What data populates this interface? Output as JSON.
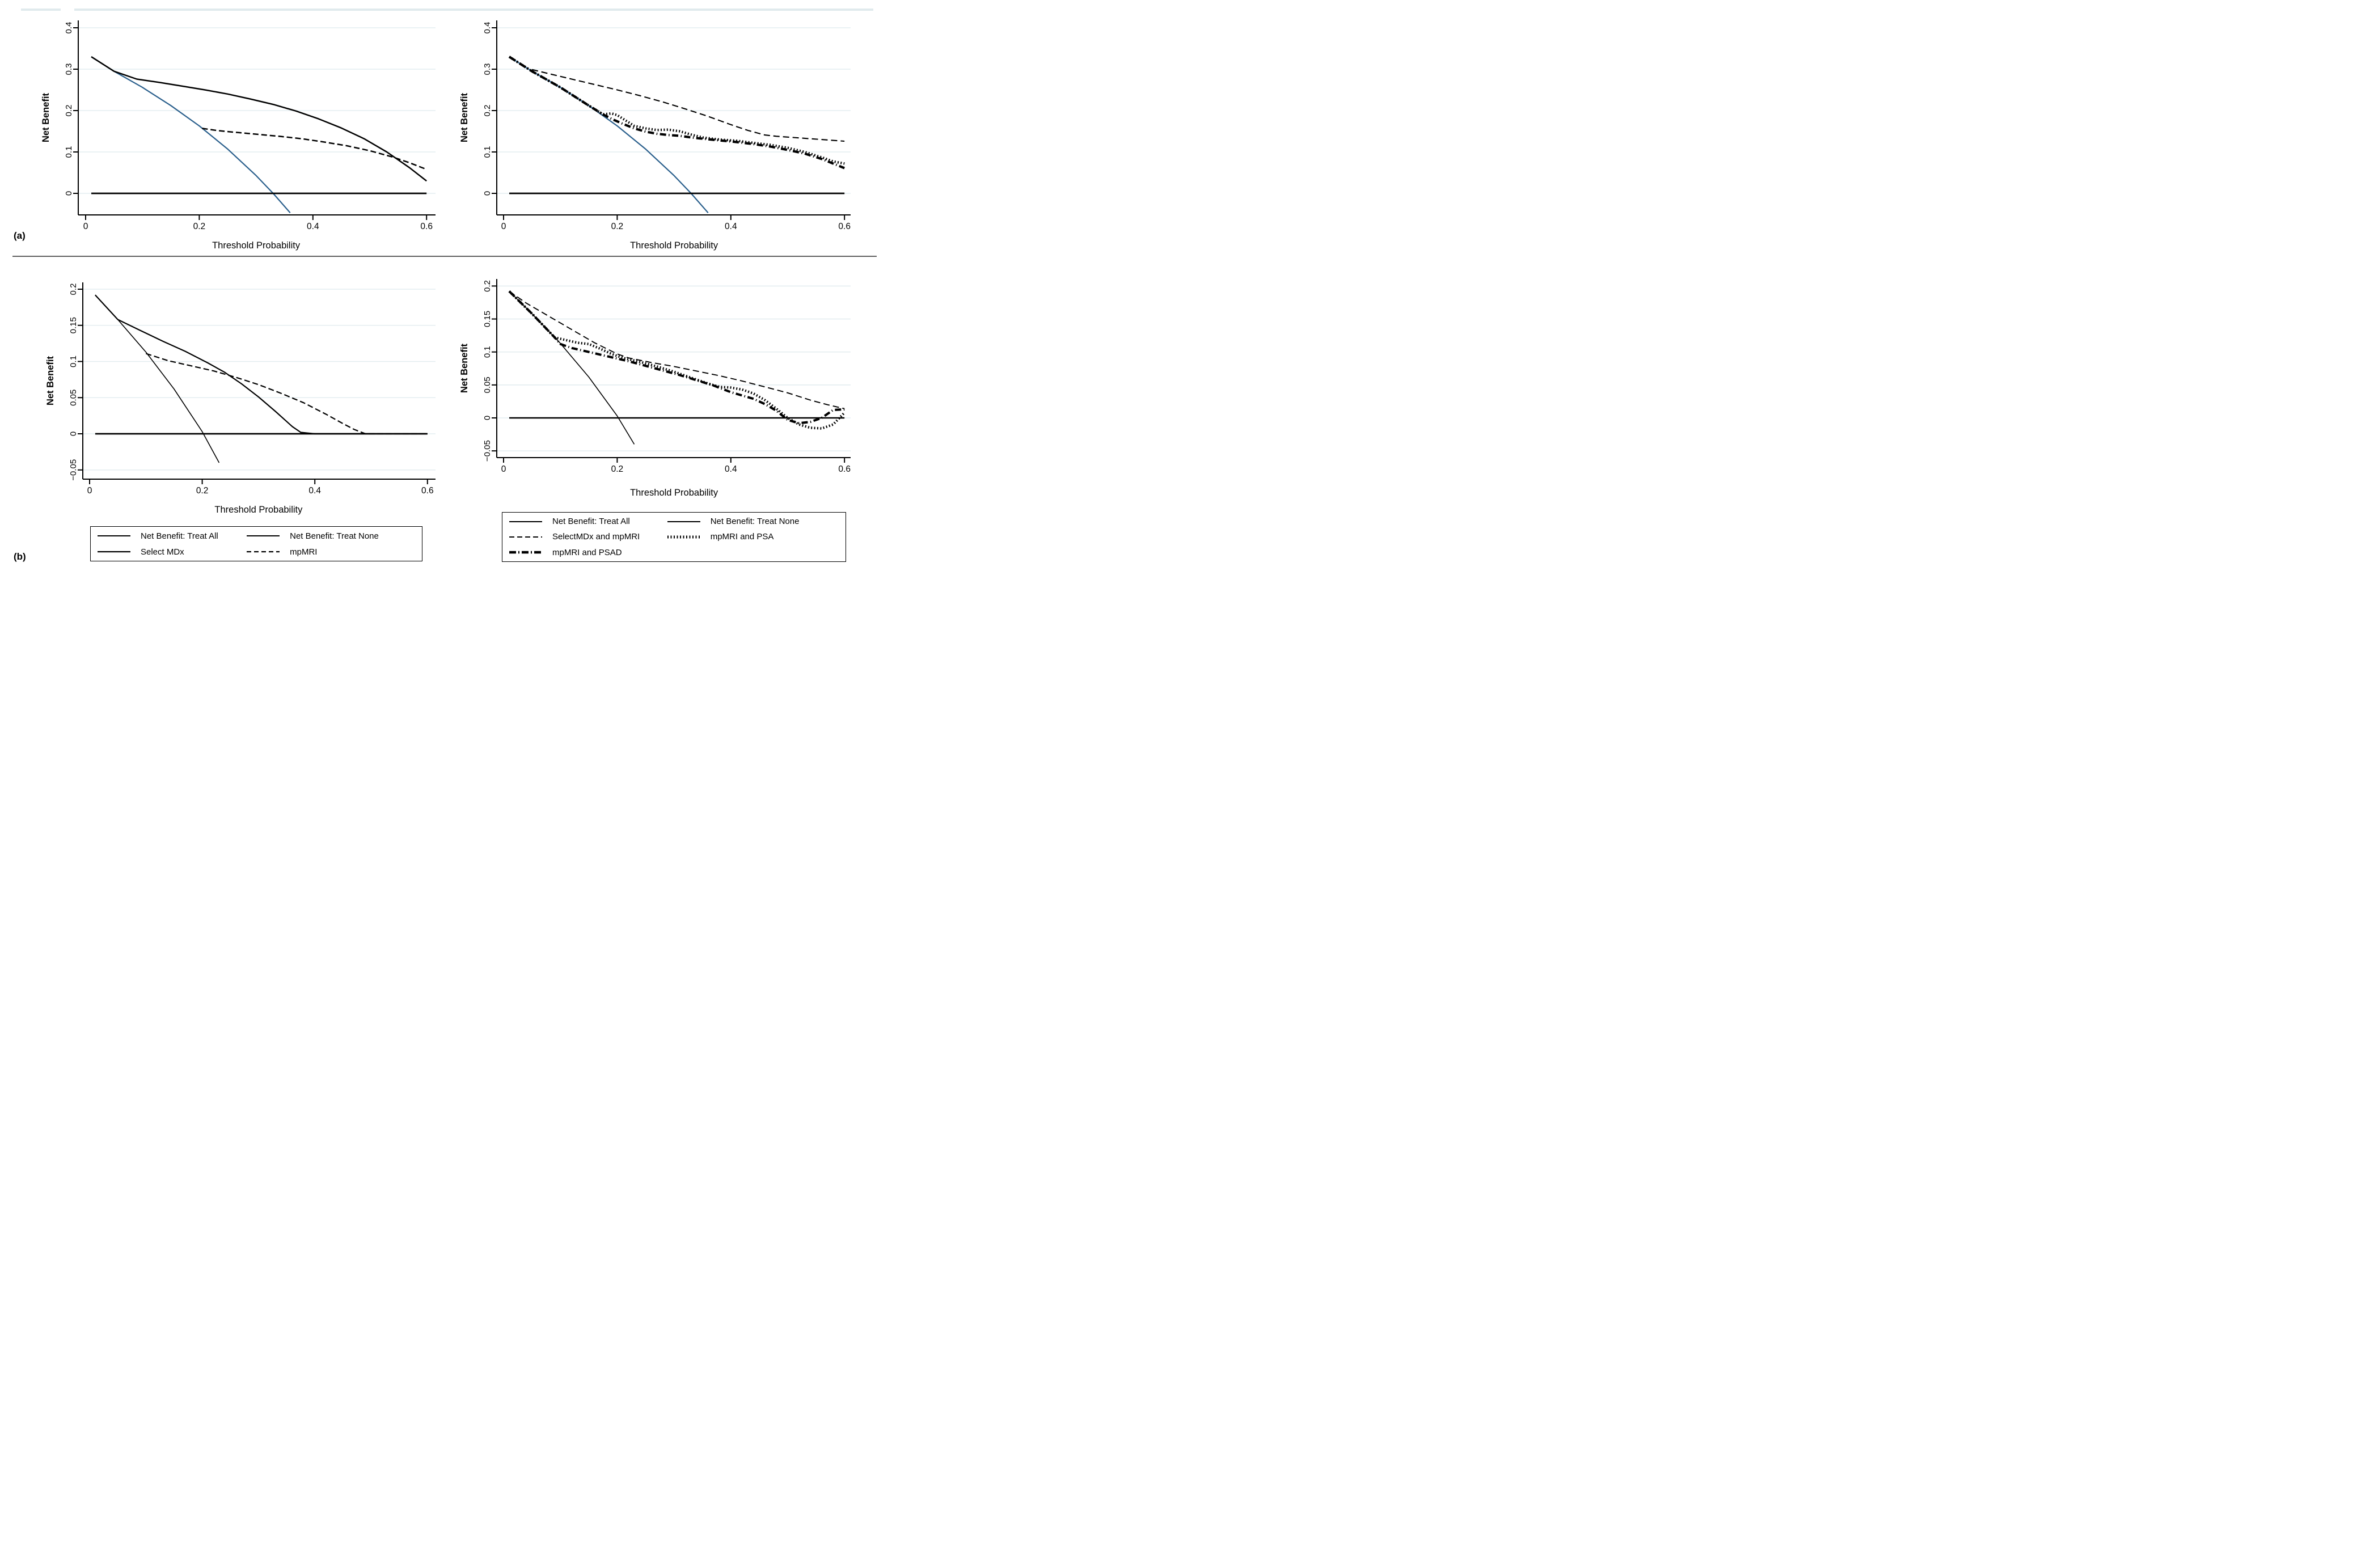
{
  "figure": {
    "panel_a_label": "(a)",
    "panel_b_label": "(b)"
  },
  "colors": {
    "treat_all_blue": "#2a5f8c",
    "line_black": "#000000",
    "grid": "#e4edf0",
    "divider": "#4a4a4a",
    "top_rule": "#e0eaed"
  },
  "chart_data": [
    {
      "id": "a-left",
      "type": "line",
      "panel": "a",
      "xlabel": "Threshold Probability",
      "ylabel": "Net Benefit",
      "xlim": [
        0,
        0.62
      ],
      "ylim": [
        -0.052,
        0.418
      ],
      "grid": true,
      "legend_position": "none",
      "x_tick_values": [
        0,
        0.2,
        0.4,
        0.6
      ],
      "x_ticks": [
        "0",
        "0.2",
        "0.4",
        "0.6"
      ],
      "y_tick_values": [
        0,
        0.1,
        0.2,
        0.3,
        0.4
      ],
      "y_ticks": [
        "0",
        "0.1",
        "0.2",
        "0.3",
        "0.4"
      ],
      "series": [
        {
          "name": "Net Benefit: Treat All",
          "key": "treat-all",
          "color": "#2a5f8c",
          "width": 2.2,
          "dash": "",
          "x": [
            0.01,
            0.05,
            0.1,
            0.15,
            0.2,
            0.25,
            0.3,
            0.33,
            0.36
          ],
          "y": [
            0.33,
            0.295,
            0.256,
            0.212,
            0.163,
            0.107,
            0.043,
            0.0,
            -0.047
          ]
        },
        {
          "name": "Net Benefit: Treat None",
          "key": "treat-none",
          "color": "#000000",
          "width": 2.8,
          "dash": "",
          "x": [
            0.01,
            0.6
          ],
          "y": [
            0,
            0
          ]
        },
        {
          "name": "Select MDx",
          "key": "select-mdx",
          "color": "#000000",
          "width": 2.5,
          "dash": "",
          "x": [
            0.01,
            0.05,
            0.09,
            0.13,
            0.17,
            0.21,
            0.25,
            0.29,
            0.33,
            0.37,
            0.41,
            0.45,
            0.49,
            0.53,
            0.57,
            0.6
          ],
          "y": [
            0.33,
            0.295,
            0.276,
            0.268,
            0.259,
            0.25,
            0.24,
            0.228,
            0.215,
            0.199,
            0.18,
            0.158,
            0.132,
            0.1,
            0.062,
            0.03
          ]
        },
        {
          "name": "mpMRI",
          "key": "mpmri",
          "color": "#000000",
          "width": 2.5,
          "dash": "10 5",
          "x": [
            0.205,
            0.23,
            0.26,
            0.3,
            0.34,
            0.38,
            0.42,
            0.46,
            0.5,
            0.54,
            0.57,
            0.6
          ],
          "y": [
            0.157,
            0.152,
            0.148,
            0.143,
            0.138,
            0.132,
            0.124,
            0.115,
            0.103,
            0.088,
            0.074,
            0.058
          ]
        }
      ]
    },
    {
      "id": "a-right",
      "type": "line",
      "panel": "a",
      "xlabel": "Threshold Probability",
      "ylabel": "Net Benefit",
      "xlim": [
        0,
        0.62
      ],
      "ylim": [
        -0.052,
        0.418
      ],
      "grid": true,
      "legend_position": "none",
      "x_tick_values": [
        0,
        0.2,
        0.4,
        0.6
      ],
      "x_ticks": [
        "0",
        "0.2",
        "0.4",
        "0.6"
      ],
      "y_tick_values": [
        0,
        0.1,
        0.2,
        0.3,
        0.4
      ],
      "y_ticks": [
        "0",
        "0.1",
        "0.2",
        "0.3",
        "0.4"
      ],
      "series": [
        {
          "name": "Net Benefit: Treat All",
          "key": "treat-all",
          "color": "#2a5f8c",
          "width": 2.2,
          "dash": "",
          "x": [
            0.01,
            0.05,
            0.1,
            0.15,
            0.2,
            0.25,
            0.3,
            0.33,
            0.36
          ],
          "y": [
            0.33,
            0.295,
            0.256,
            0.212,
            0.163,
            0.107,
            0.043,
            0.0,
            -0.047
          ]
        },
        {
          "name": "Net Benefit: Treat None",
          "key": "treat-none",
          "color": "#000000",
          "width": 2.8,
          "dash": "",
          "x": [
            0.01,
            0.6
          ],
          "y": [
            0,
            0
          ]
        },
        {
          "name": "SelectMDx and mpMRI",
          "key": "selectmdx-mpmri",
          "color": "#000000",
          "width": 2.1,
          "dash": "11 6",
          "x": [
            0.05,
            0.08,
            0.12,
            0.16,
            0.2,
            0.24,
            0.28,
            0.32,
            0.36,
            0.4,
            0.43,
            0.46,
            0.48,
            0.52,
            0.56,
            0.6
          ],
          "y": [
            0.299,
            0.289,
            0.276,
            0.263,
            0.25,
            0.236,
            0.221,
            0.204,
            0.186,
            0.166,
            0.152,
            0.141,
            0.138,
            0.134,
            0.13,
            0.126
          ]
        },
        {
          "name": "mpMRI and PSAD",
          "key": "mpmri-psad",
          "color": "#000000",
          "width": 4.2,
          "dash": "11 4.5 1.5 4.5",
          "x": [
            0.01,
            0.05,
            0.1,
            0.15,
            0.175,
            0.19,
            0.21,
            0.23,
            0.25,
            0.27,
            0.29,
            0.31,
            0.33,
            0.35,
            0.38,
            0.41,
            0.44,
            0.47,
            0.5,
            0.53,
            0.56,
            0.58,
            0.6
          ],
          "y": [
            0.33,
            0.295,
            0.256,
            0.212,
            0.191,
            0.18,
            0.168,
            0.157,
            0.149,
            0.144,
            0.141,
            0.139,
            0.135,
            0.132,
            0.128,
            0.124,
            0.119,
            0.113,
            0.105,
            0.096,
            0.083,
            0.072,
            0.061
          ]
        },
        {
          "name": "mpMRI and PSA",
          "key": "mpmri-psa",
          "color": "#000000",
          "width": 4.4,
          "dash": "2 3.4",
          "x": [
            0.01,
            0.05,
            0.1,
            0.15,
            0.175,
            0.19,
            0.2,
            0.215,
            0.23,
            0.25,
            0.27,
            0.29,
            0.31,
            0.33,
            0.35,
            0.38,
            0.41,
            0.44,
            0.47,
            0.5,
            0.53,
            0.56,
            0.58,
            0.6
          ],
          "y": [
            0.33,
            0.295,
            0.256,
            0.212,
            0.191,
            0.193,
            0.189,
            0.176,
            0.163,
            0.157,
            0.153,
            0.154,
            0.15,
            0.142,
            0.135,
            0.13,
            0.127,
            0.122,
            0.117,
            0.11,
            0.1,
            0.087,
            0.077,
            0.072
          ]
        }
      ]
    },
    {
      "id": "b-left",
      "type": "line",
      "panel": "b",
      "xlabel": "Threshold Probability",
      "ylabel": "Net Benefit",
      "xlim": [
        0,
        0.62
      ],
      "ylim": [
        -0.063,
        0.209
      ],
      "grid": true,
      "legend_position": "below",
      "x_tick_values": [
        0,
        0.2,
        0.4,
        0.6
      ],
      "x_ticks": [
        "0",
        "0.2",
        "0.4",
        "0.6"
      ],
      "y_tick_values": [
        -0.05,
        0,
        0.05,
        0.1,
        0.15,
        0.2
      ],
      "y_ticks": [
        "−0.05",
        "0",
        "0.05",
        "0.1",
        "0.15",
        "0.2"
      ],
      "series": [
        {
          "name": "Net Benefit: Treat All",
          "key": "treat-all",
          "color": "#000000",
          "width": 1.6,
          "dash": "",
          "x": [
            0.01,
            0.05,
            0.1,
            0.15,
            0.2,
            0.23
          ],
          "y": [
            0.192,
            0.158,
            0.113,
            0.062,
            0.003,
            -0.04
          ]
        },
        {
          "name": "Net Benefit: Treat None",
          "key": "treat-none",
          "color": "#000000",
          "width": 2.8,
          "dash": "",
          "x": [
            0.01,
            0.6
          ],
          "y": [
            0,
            0
          ]
        },
        {
          "name": "Select MDx",
          "key": "select-mdx",
          "color": "#000000",
          "width": 2.2,
          "dash": "",
          "x": [
            0.01,
            0.05,
            0.09,
            0.13,
            0.17,
            0.21,
            0.24,
            0.27,
            0.3,
            0.33,
            0.36,
            0.375,
            0.4,
            0.6
          ],
          "y": [
            0.192,
            0.158,
            0.143,
            0.128,
            0.114,
            0.098,
            0.085,
            0.069,
            0.051,
            0.031,
            0.01,
            0.002,
            0.0,
            0.0
          ]
        },
        {
          "name": "mpMRI",
          "key": "mpmri",
          "color": "#000000",
          "width": 2.2,
          "dash": "10 5",
          "x": [
            0.1,
            0.14,
            0.18,
            0.22,
            0.26,
            0.3,
            0.34,
            0.38,
            0.42,
            0.45,
            0.47,
            0.49,
            0.6
          ],
          "y": [
            0.111,
            0.101,
            0.094,
            0.087,
            0.078,
            0.068,
            0.056,
            0.043,
            0.027,
            0.014,
            0.006,
            0.0,
            0.0
          ]
        }
      ]
    },
    {
      "id": "b-right",
      "type": "line",
      "panel": "b",
      "xlabel": "Threshold Probability",
      "ylabel": "Net Benefit",
      "xlim": [
        0,
        0.62
      ],
      "ylim": [
        -0.06,
        0.211
      ],
      "grid": true,
      "legend_position": "below",
      "x_tick_values": [
        0,
        0.2,
        0.4,
        0.6
      ],
      "x_ticks": [
        "0",
        "0.2",
        "0.4",
        "0.6"
      ],
      "y_tick_values": [
        -0.05,
        0,
        0.05,
        0.1,
        0.15,
        0.2
      ],
      "y_ticks": [
        "−0.05",
        "0",
        "0.05",
        "0.1",
        "0.15",
        "0.2"
      ],
      "series": [
        {
          "name": "Net Benefit: Treat All",
          "key": "treat-all",
          "color": "#000000",
          "width": 1.6,
          "dash": "",
          "x": [
            0.01,
            0.05,
            0.1,
            0.15,
            0.2,
            0.23
          ],
          "y": [
            0.192,
            0.158,
            0.113,
            0.062,
            0.003,
            -0.04
          ]
        },
        {
          "name": "Net Benefit: Treat None",
          "key": "treat-none",
          "color": "#000000",
          "width": 2.6,
          "dash": "",
          "x": [
            0.01,
            0.6
          ],
          "y": [
            0,
            0
          ]
        },
        {
          "name": "SelectMDx and mpMRI",
          "key": "selectmdx-mpmri",
          "color": "#000000",
          "width": 1.9,
          "dash": "11 6",
          "x": [
            0.01,
            0.04,
            0.08,
            0.12,
            0.16,
            0.2,
            0.22,
            0.26,
            0.3,
            0.34,
            0.38,
            0.42,
            0.46,
            0.5,
            0.54,
            0.57,
            0.6
          ],
          "y": [
            0.192,
            0.174,
            0.154,
            0.134,
            0.114,
            0.097,
            0.091,
            0.084,
            0.078,
            0.071,
            0.064,
            0.056,
            0.047,
            0.038,
            0.027,
            0.02,
            0.014
          ]
        },
        {
          "name": "mpMRI and PSAD",
          "key": "mpmri-psad",
          "color": "#000000",
          "width": 4.1,
          "dash": "11 4.5 1.5 4.5",
          "x": [
            0.01,
            0.05,
            0.09,
            0.1,
            0.12,
            0.14,
            0.16,
            0.18,
            0.2,
            0.22,
            0.25,
            0.28,
            0.31,
            0.34,
            0.37,
            0.4,
            0.42,
            0.44,
            0.46,
            0.48,
            0.5,
            0.52,
            0.54,
            0.56,
            0.58,
            0.6
          ],
          "y": [
            0.192,
            0.158,
            0.122,
            0.112,
            0.106,
            0.102,
            0.098,
            0.094,
            0.09,
            0.086,
            0.079,
            0.072,
            0.065,
            0.057,
            0.049,
            0.039,
            0.034,
            0.029,
            0.021,
            0.011,
            -0.003,
            -0.008,
            -0.006,
            0.0,
            0.012,
            0.013
          ]
        },
        {
          "name": "mpMRI and PSA",
          "key": "mpmri-psa",
          "color": "#000000",
          "width": 4.4,
          "dash": "2 3.4",
          "x": [
            0.01,
            0.05,
            0.09,
            0.11,
            0.13,
            0.15,
            0.17,
            0.19,
            0.21,
            0.24,
            0.27,
            0.3,
            0.33,
            0.36,
            0.38,
            0.4,
            0.42,
            0.44,
            0.46,
            0.48,
            0.5,
            0.52,
            0.54,
            0.56,
            0.58,
            0.6
          ],
          "y": [
            0.192,
            0.158,
            0.122,
            0.118,
            0.114,
            0.112,
            0.105,
            0.097,
            0.091,
            0.085,
            0.078,
            0.07,
            0.061,
            0.052,
            0.047,
            0.046,
            0.043,
            0.037,
            0.027,
            0.014,
            0.0,
            -0.01,
            -0.015,
            -0.016,
            -0.01,
            0.008
          ]
        }
      ]
    }
  ],
  "legends": [
    {
      "id": "legend-b-left",
      "items": [
        {
          "label": "Net Benefit: Treat All",
          "color": "#000000",
          "width": 2,
          "dash": ""
        },
        {
          "label": "Net Benefit: Treat None",
          "color": "#000000",
          "width": 2,
          "dash": ""
        },
        {
          "label": "Select MDx",
          "color": "#000000",
          "width": 2.2,
          "dash": ""
        },
        {
          "label": "mpMRI",
          "color": "#000000",
          "width": 2.2,
          "dash": "8 5"
        }
      ]
    },
    {
      "id": "legend-b-right",
      "items": [
        {
          "label": "Net Benefit: Treat All",
          "color": "#000000",
          "width": 2,
          "dash": ""
        },
        {
          "label": "Net Benefit: Treat None",
          "color": "#000000",
          "width": 2,
          "dash": ""
        },
        {
          "label": "SelectMDx and mpMRI",
          "color": "#000000",
          "width": 2,
          "dash": "9 5"
        },
        {
          "label": "mpMRI and PSA",
          "color": "#000000",
          "width": 5,
          "dash": "2 3.5"
        },
        {
          "label": "mpMRI and PSAD",
          "color": "#000000",
          "width": 4.5,
          "dash": "12 4 2 4"
        }
      ]
    }
  ]
}
